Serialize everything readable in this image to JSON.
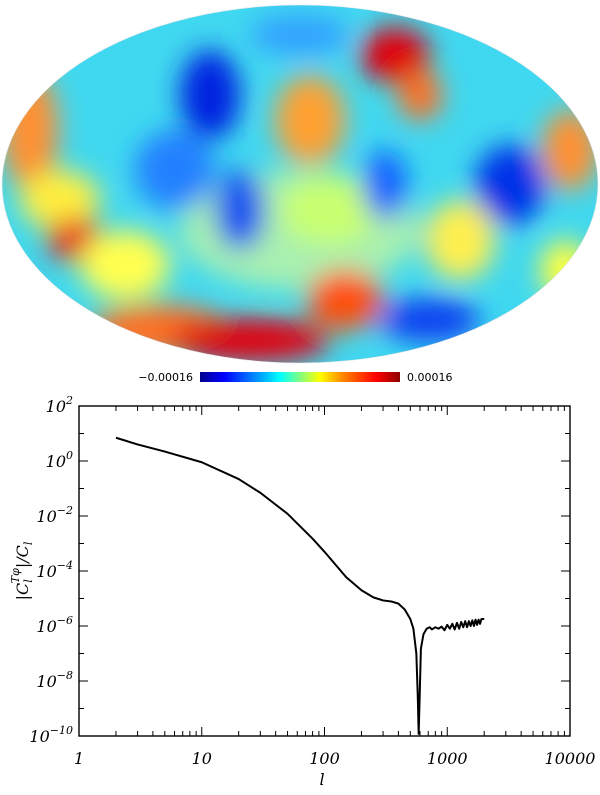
{
  "map_panel": {
    "projection": "mollweide",
    "colorbar": {
      "min_label": "−0.00016",
      "max_label": "0.00016",
      "colormap": [
        "#00008f",
        "#0000ff",
        "#00a0ff",
        "#00ffff",
        "#80ff80",
        "#ffff00",
        "#ff8000",
        "#ff0000",
        "#8f0000"
      ]
    }
  },
  "chart_data": {
    "type": "line",
    "xscale": "log",
    "yscale": "log",
    "xlim": [
      1,
      10000
    ],
    "ylim": [
      1e-10,
      100
    ],
    "xlabel": "l",
    "ylabel": "|C_l^{Tφ}|/C_l",
    "x_ticks": [
      {
        "value": 1,
        "label": "1"
      },
      {
        "value": 10,
        "label": "10"
      },
      {
        "value": 100,
        "label": "100"
      },
      {
        "value": 1000,
        "label": "1000"
      },
      {
        "value": 10000,
        "label": "10000"
      }
    ],
    "y_ticks": [
      {
        "value": 1e-10,
        "base": "10",
        "exp": "−10"
      },
      {
        "value": 1e-08,
        "base": "10",
        "exp": "−8"
      },
      {
        "value": 1e-06,
        "base": "10",
        "exp": "−6"
      },
      {
        "value": 0.0001,
        "base": "10",
        "exp": "−4"
      },
      {
        "value": 0.01,
        "base": "10",
        "exp": "−2"
      },
      {
        "value": 1,
        "base": "10",
        "exp": "0"
      },
      {
        "value": 100,
        "base": "10",
        "exp": "2"
      }
    ],
    "series": [
      {
        "color": "#000000",
        "x": [
          2,
          3,
          5,
          10,
          20,
          30,
          50,
          80,
          100,
          150,
          200,
          250,
          300,
          350,
          400,
          450,
          500,
          530,
          560,
          575,
          585,
          595,
          610,
          640,
          680,
          720,
          750,
          800,
          850,
          900,
          950,
          1000,
          1050,
          1100,
          1150,
          1200,
          1250,
          1300,
          1350,
          1400,
          1450,
          1500,
          1550,
          1600,
          1650,
          1700,
          1750,
          1800,
          1850,
          1900,
          2000
        ],
        "y": [
          7,
          4,
          2.2,
          0.9,
          0.22,
          0.07,
          0.012,
          0.0015,
          0.0005,
          6e-05,
          2e-05,
          1.1e-05,
          8.5e-06,
          7.8e-06,
          6.5e-06,
          4e-06,
          1.8e-06,
          8e-07,
          1e-07,
          3e-09,
          1.2e-10,
          2e-09,
          1.5e-07,
          5e-07,
          8e-07,
          9e-07,
          7.5e-07,
          9e-07,
          8e-07,
          9.5e-07,
          7e-07,
          1.1e-06,
          8e-07,
          1.2e-06,
          7.5e-07,
          1.3e-06,
          8e-07,
          1.4e-06,
          9e-07,
          1.5e-06,
          9e-07,
          1.5e-06,
          1e-06,
          1.6e-06,
          1e-06,
          1.7e-06,
          1.1e-06,
          1.7e-06,
          1.2e-06,
          1.8e-06,
          1.8e-06
        ]
      }
    ]
  }
}
